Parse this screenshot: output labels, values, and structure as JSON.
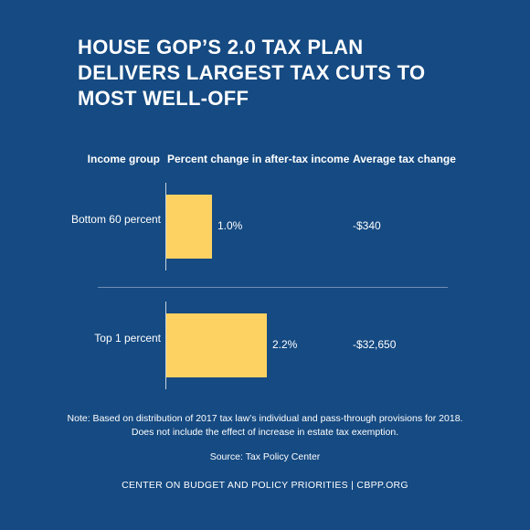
{
  "chart_data": {
    "type": "bar",
    "title": "HOUSE GOP’S 2.0 TAX PLAN DELIVERS LARGEST TAX CUTS TO MOST WELL-OFF",
    "column_headers": [
      "Income group",
      "Percent change in after-tax income",
      "Average tax change"
    ],
    "categories": [
      "Bottom 60 percent",
      "Top 1 percent"
    ],
    "values": [
      1.0,
      2.2
    ],
    "value_labels": [
      "1.0%",
      "2.2%"
    ],
    "average_tax_change": [
      "-$340",
      "-$32,650"
    ],
    "color": "#fdd262",
    "xlim": [
      0,
      2.2
    ],
    "note": [
      "Note: Based on distribution of 2017 tax law’s individual and pass-through provisions for 2018.",
      "Does not include the effect of increase in estate tax exemption."
    ],
    "source": "Source: Tax Policy Center",
    "footer": "CENTER ON BUDGET AND POLICY PRIORITIES | CBPP.ORG"
  }
}
